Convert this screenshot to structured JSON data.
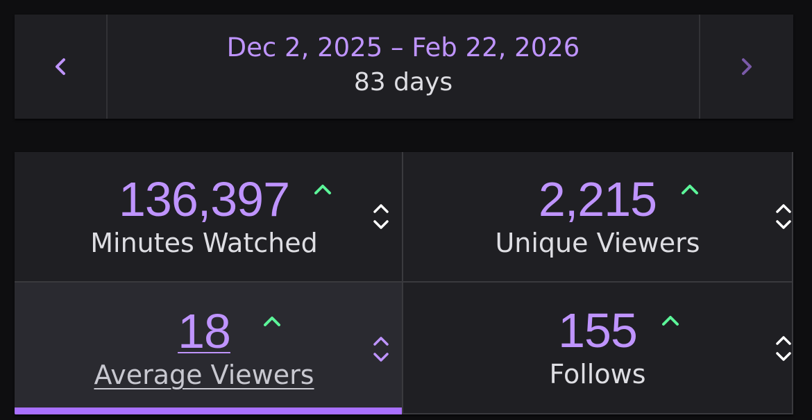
{
  "date_range": {
    "range_label": "Dec 2, 2025 – Feb 22, 2026",
    "days_label": "83 days",
    "prev_icon": "chevron-left-icon",
    "next_icon": "chevron-right-icon"
  },
  "stats": [
    {
      "value": "136,397",
      "label": "Minutes Watched",
      "trend": "up",
      "selected": false
    },
    {
      "value": "2,215",
      "label": "Unique Viewers",
      "trend": "up",
      "selected": false
    },
    {
      "value": "18",
      "label": "Average Viewers",
      "trend": "up",
      "selected": true
    },
    {
      "value": "155",
      "label": "Follows",
      "trend": "up",
      "selected": false
    }
  ],
  "colors": {
    "accent": "#bf94ff",
    "accent_bar": "#a970ff",
    "trend_up": "#5cf599",
    "text": "#dedee3",
    "tile_bg": "#1f1f23",
    "tile_selected_bg": "#2a2a30",
    "page_bg": "#0e0e10"
  }
}
